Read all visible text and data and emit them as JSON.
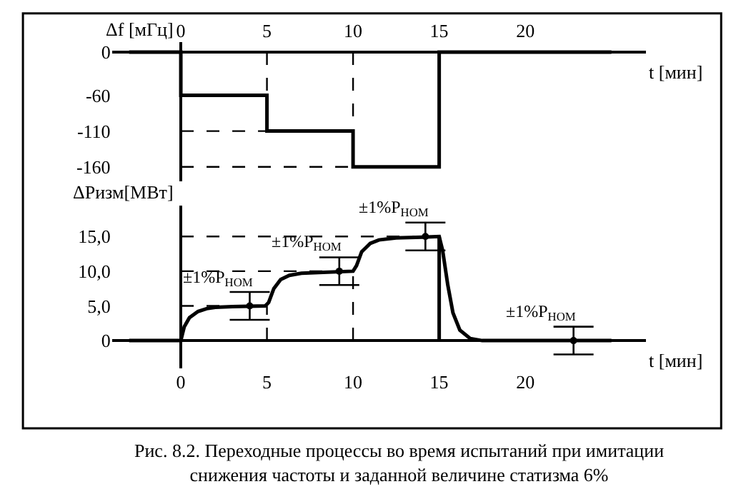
{
  "chart_data": [
    {
      "type": "line",
      "ylabel": "Δf [мГц]",
      "xlabel": "t [мин]",
      "xlim": [
        -4,
        27
      ],
      "xticks": [
        0,
        5,
        10,
        15,
        20
      ],
      "ylim": [
        -180,
        14
      ],
      "yticks": [
        0,
        -60,
        -110,
        -160
      ],
      "marker": "none",
      "series": [
        {
          "color": "#000000",
          "x": [
            -3,
            0,
            0,
            5,
            5,
            10,
            10,
            15,
            15,
            25
          ],
          "values": [
            0,
            0,
            -60,
            -60,
            -110,
            -110,
            -160,
            -160,
            0,
            0
          ]
        },
        {
          "color": "#000000",
          "line_style": "dashed",
          "x": [
            0,
            5
          ],
          "values": [
            -110,
            -110
          ]
        },
        {
          "color": "#000000",
          "line_style": "dashed",
          "x": [
            0,
            10
          ],
          "values": [
            -160,
            -160
          ]
        },
        {
          "color": "#000000",
          "line_style": "dashed",
          "x": [
            5,
            5
          ],
          "values": [
            0,
            -60
          ]
        },
        {
          "color": "#000000",
          "line_style": "dashed",
          "x": [
            10,
            10
          ],
          "values": [
            0,
            -110
          ]
        }
      ]
    },
    {
      "type": "line",
      "ylabel": "ΔPизм[МВт]",
      "xlabel": "t [мин]",
      "xlim": [
        -4,
        27
      ],
      "xticks": [
        0,
        5,
        10,
        15,
        20
      ],
      "ylim": [
        -4,
        19.5
      ],
      "yticks": [
        0,
        {
          "value": 5,
          "label": "5,0"
        },
        {
          "value": 10,
          "label": "10,0"
        },
        {
          "value": 15,
          "label": "15,0"
        }
      ],
      "marker": "none",
      "series": [
        {
          "color": "#000000",
          "x": [
            -3,
            0,
            0.2,
            0.5,
            1,
            1.5,
            2,
            3,
            4.9,
            5.1,
            5.4,
            5.8,
            6.3,
            7,
            8,
            10,
            10.2,
            10.5,
            11,
            11.5,
            12.5,
            14,
            15,
            15.2,
            15.5,
            15.8,
            16.2,
            16.8,
            17.5,
            25
          ],
          "values": [
            0,
            0,
            2.0,
            3.3,
            4.2,
            4.6,
            4.8,
            4.9,
            5.0,
            5.5,
            7.5,
            8.8,
            9.4,
            9.7,
            9.8,
            10.0,
            10.8,
            12.8,
            14.0,
            14.5,
            14.8,
            14.9,
            15.0,
            13,
            8,
            4,
            1.5,
            0.3,
            0,
            0
          ]
        },
        {
          "color": "#000000",
          "line_style": "dashed",
          "x": [
            0,
            5
          ],
          "values": [
            5,
            5
          ]
        },
        {
          "color": "#000000",
          "line_style": "dashed",
          "x": [
            0,
            10
          ],
          "values": [
            10,
            10
          ]
        },
        {
          "color": "#000000",
          "line_style": "dashed",
          "x": [
            0,
            15
          ],
          "values": [
            15,
            15
          ]
        },
        {
          "color": "#000000",
          "line_style": "dashed",
          "x": [
            5,
            5
          ],
          "values": [
            0,
            5
          ]
        },
        {
          "color": "#000000",
          "line_style": "dashed",
          "x": [
            10,
            10
          ],
          "values": [
            0,
            10
          ]
        },
        {
          "color": "#000000",
          "x": [
            15,
            15
          ],
          "values": [
            0,
            15
          ]
        },
        {
          "type": "scatter",
          "marker": "circle",
          "color": "#000000",
          "x": [
            4,
            9.2,
            14.2,
            22.8
          ],
          "values": [
            5,
            10,
            15,
            0
          ],
          "errors": [
            2,
            2,
            2,
            2
          ]
        }
      ],
      "annotations": [
        "±1%P$_{НОМ}$",
        "±1%P$_{НОМ}$",
        "±1%P$_{НОМ}$",
        "±1%P$_{НОМ}$",
        "Рис. 8.2. Переходные процессы во время испытаний при имитации\nснижения частоты и заданной величине статизма 6%"
      ]
    }
  ]
}
